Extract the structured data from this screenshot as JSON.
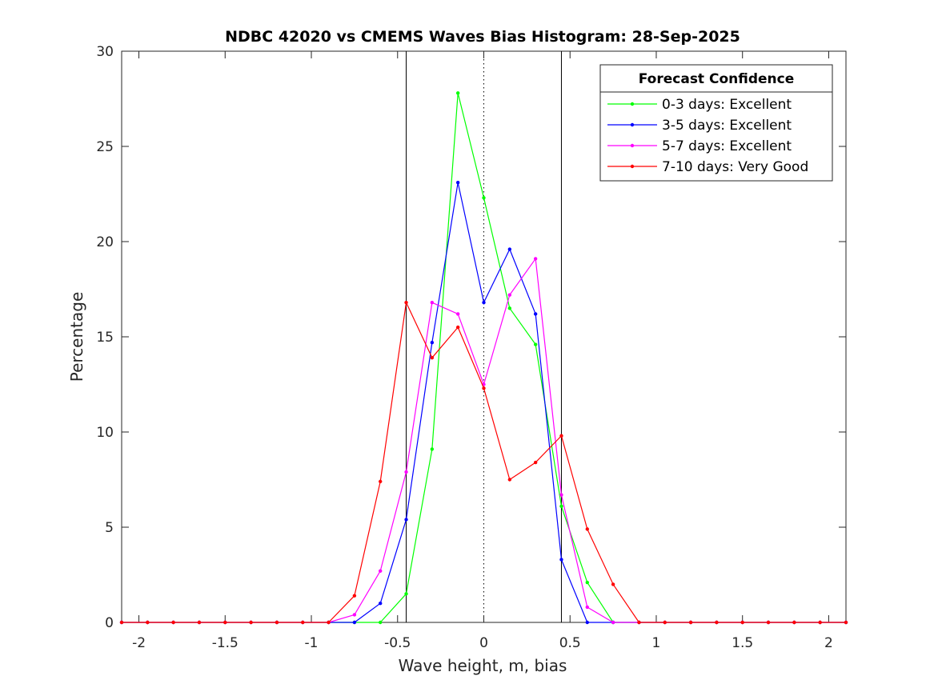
{
  "chart_data": {
    "type": "line",
    "title": "NDBC 42020 vs CMEMS Waves Bias Histogram: 28-Sep-2025",
    "xlabel": "Wave height, m, bias",
    "ylabel": "Percentage",
    "xlim": [
      -2.1,
      2.1
    ],
    "ylim": [
      0,
      30
    ],
    "xticks": [
      -2,
      -1.5,
      -1,
      -0.5,
      0,
      0.5,
      1,
      1.5,
      2
    ],
    "xtick_labels": [
      "-2",
      "-1.5",
      "-1",
      "-0.5",
      "0",
      "0.5",
      "1",
      "1.5",
      "2"
    ],
    "yticks": [
      0,
      5,
      10,
      15,
      20,
      25,
      30
    ],
    "ytick_labels": [
      "0",
      "5",
      "10",
      "15",
      "20",
      "25",
      "30"
    ],
    "grid": false,
    "reference_lines": [
      {
        "x": -0.45,
        "style": "solid"
      },
      {
        "x": 0,
        "style": "dotted"
      },
      {
        "x": 0.45,
        "style": "solid"
      }
    ],
    "legend": {
      "title": "Forecast Confidence",
      "placement": "top-right"
    },
    "x": [
      -2.1,
      -1.95,
      -1.8,
      -1.65,
      -1.5,
      -1.35,
      -1.2,
      -1.05,
      -0.9,
      -0.75,
      -0.6,
      -0.45,
      -0.3,
      -0.15,
      0,
      0.15,
      0.3,
      0.45,
      0.6,
      0.75,
      0.9,
      1.05,
      1.2,
      1.35,
      1.5,
      1.65,
      1.8,
      1.95,
      2.1
    ],
    "series": [
      {
        "name": "0-3 days: Excellent",
        "color": "#00ff00",
        "values": [
          0,
          0,
          0,
          0,
          0,
          0,
          0,
          0,
          0,
          0,
          0,
          1.5,
          9.1,
          27.8,
          22.3,
          16.5,
          14.6,
          6.1,
          2.1,
          0,
          0,
          0,
          0,
          0,
          0,
          0,
          0,
          0,
          0
        ]
      },
      {
        "name": "3-5 days: Excellent",
        "color": "#0000ff",
        "values": [
          0,
          0,
          0,
          0,
          0,
          0,
          0,
          0,
          0,
          0,
          1.0,
          5.4,
          14.7,
          23.1,
          16.8,
          19.6,
          16.2,
          3.3,
          0,
          0,
          0,
          0,
          0,
          0,
          0,
          0,
          0,
          0,
          0
        ]
      },
      {
        "name": "5-7 days: Excellent",
        "color": "#ff00ff",
        "values": [
          0,
          0,
          0,
          0,
          0,
          0,
          0,
          0,
          0,
          0.4,
          2.7,
          7.9,
          16.8,
          16.2,
          12.5,
          17.2,
          19.1,
          6.7,
          0.8,
          0,
          0,
          0,
          0,
          0,
          0,
          0,
          0,
          0,
          0
        ]
      },
      {
        "name": "7-10 days: Very Good",
        "color": "#ff0000",
        "values": [
          0,
          0,
          0,
          0,
          0,
          0,
          0,
          0,
          0,
          1.4,
          7.4,
          16.8,
          13.9,
          15.5,
          12.3,
          7.5,
          8.4,
          9.8,
          4.9,
          2.0,
          0,
          0,
          0,
          0,
          0,
          0,
          0,
          0,
          0
        ]
      }
    ]
  }
}
